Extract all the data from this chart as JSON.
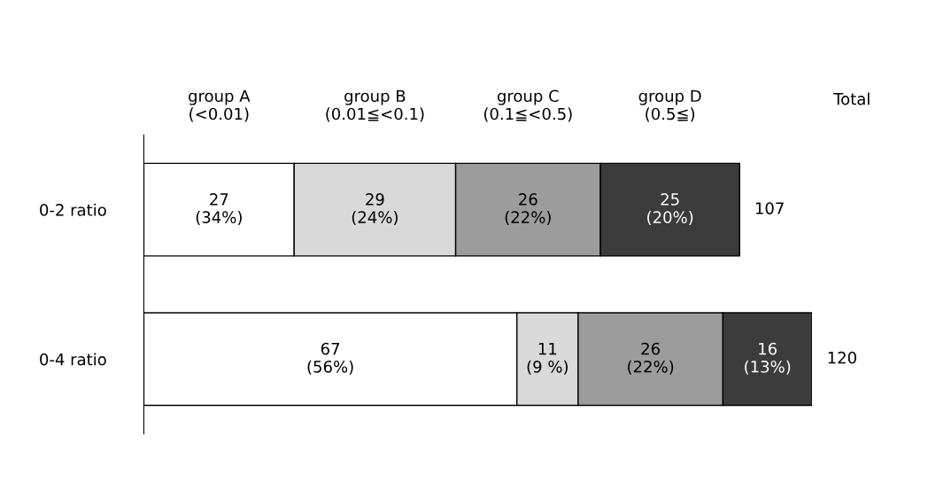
{
  "chart_data": {
    "type": "bar",
    "orientation": "horizontal",
    "stacked": true,
    "categories": [
      "0-2 ratio",
      "0-4 ratio"
    ],
    "series": [
      {
        "name": "group A\n(<0.01)",
        "color": "#ffffff",
        "values": [
          27,
          67
        ],
        "value_labels": [
          "27\n(34%)",
          "67\n(56%)"
        ]
      },
      {
        "name": "group B\n(0.01≦<0.1)",
        "color": "#d9d9d9",
        "values": [
          29,
          11
        ],
        "value_labels": [
          "29\n(24%)",
          "11\n(9 %)"
        ]
      },
      {
        "name": "group C\n(0.1≦<0.5)",
        "color": "#9c9c9c",
        "values": [
          26,
          26
        ],
        "value_labels": [
          "26\n(22%)",
          "26\n(22%)"
        ]
      },
      {
        "name": "group D\n(0.5≦)",
        "color": "#3c3c3c",
        "values": [
          25,
          16
        ],
        "value_labels": [
          "25\n(20%)",
          "16\n(13%)"
        ]
      }
    ],
    "totals": [
      "107",
      "120"
    ],
    "annotations": [
      "Total"
    ],
    "legend": false
  }
}
